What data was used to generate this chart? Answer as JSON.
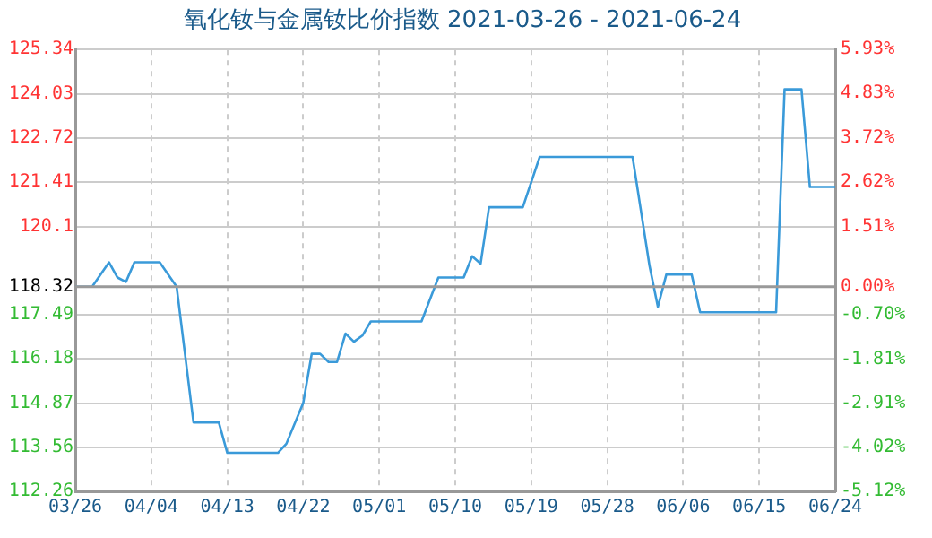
{
  "chart_data": {
    "type": "line",
    "title": "氧化钕与金属钕比价指数 2021-03-26 - 2021-06-24",
    "x": [
      "2021-03-26",
      "2021-03-28",
      "2021-03-30",
      "2021-03-31",
      "2021-04-01",
      "2021-04-02",
      "2021-04-05",
      "2021-04-07",
      "2021-04-09",
      "2021-04-12",
      "2021-04-13",
      "2021-04-19",
      "2021-04-20",
      "2021-04-22",
      "2021-04-23",
      "2021-04-24",
      "2021-04-25",
      "2021-04-26",
      "2021-04-27",
      "2021-04-28",
      "2021-04-29",
      "2021-04-30",
      "2021-05-06",
      "2021-05-08",
      "2021-05-11",
      "2021-05-12",
      "2021-05-13",
      "2021-05-14",
      "2021-05-18",
      "2021-05-20",
      "2021-05-31",
      "2021-06-02",
      "2021-06-03",
      "2021-06-04",
      "2021-06-07",
      "2021-06-08",
      "2021-06-17",
      "2021-06-18",
      "2021-06-20",
      "2021-06-21",
      "2021-06-24"
    ],
    "series": [
      {
        "color": "#3a9ad9",
        "values": [
          118.32,
          118.32,
          119.04,
          118.59,
          118.46,
          119.04,
          119.04,
          118.32,
          114.3,
          114.3,
          113.4,
          113.4,
          113.67,
          114.88,
          116.33,
          116.33,
          116.09,
          116.09,
          116.93,
          116.69,
          116.87,
          117.29,
          117.29,
          118.59,
          118.59,
          119.22,
          119.0,
          120.67,
          120.67,
          122.16,
          122.16,
          118.95,
          117.72,
          118.68,
          118.68,
          117.56,
          117.56,
          124.16,
          124.16,
          121.27,
          121.27
        ]
      }
    ],
    "xlim": [
      "2021-03-26",
      "2021-06-24"
    ],
    "xticks": [
      {
        "value": "2021-03-26",
        "label": "03/26"
      },
      {
        "value": "2021-04-04",
        "label": "04/04"
      },
      {
        "value": "2021-04-13",
        "label": "04/13"
      },
      {
        "value": "2021-04-22",
        "label": "04/22"
      },
      {
        "value": "2021-05-01",
        "label": "05/01"
      },
      {
        "value": "2021-05-10",
        "label": "05/10"
      },
      {
        "value": "2021-05-19",
        "label": "05/19"
      },
      {
        "value": "2021-05-28",
        "label": "05/28"
      },
      {
        "value": "2021-06-06",
        "label": "06/06"
      },
      {
        "value": "2021-06-15",
        "label": "06/15"
      },
      {
        "value": "2021-06-24",
        "label": "06/24"
      }
    ],
    "ylim": [
      112.26,
      125.34
    ],
    "yticks": [
      112.26,
      113.56,
      114.87,
      116.18,
      117.49,
      118.32,
      120.1,
      121.41,
      122.72,
      124.03,
      125.34
    ],
    "y2lim": [
      -5.12,
      5.93
    ],
    "y2ticks": [
      {
        "value": -5.12,
        "label": "-5.12%"
      },
      {
        "value": -4.02,
        "label": "-4.02%"
      },
      {
        "value": -2.91,
        "label": "-2.91%"
      },
      {
        "value": -1.81,
        "label": "-1.81%"
      },
      {
        "value": -0.7,
        "label": "-0.70%"
      },
      {
        "value": 0,
        "label": "0.00%"
      },
      {
        "value": 1.51,
        "label": "1.51%"
      },
      {
        "value": 2.62,
        "label": "2.62%"
      },
      {
        "value": 3.72,
        "label": "3.72%"
      },
      {
        "value": 4.83,
        "label": "4.83%"
      },
      {
        "value": 5.93,
        "label": "5.93%"
      }
    ],
    "ref_lines": [
      {
        "axis": "y",
        "value": 118.32,
        "color": "#999999"
      }
    ],
    "grid": true,
    "legend": false,
    "marker": "none",
    "line_style": "solid"
  }
}
